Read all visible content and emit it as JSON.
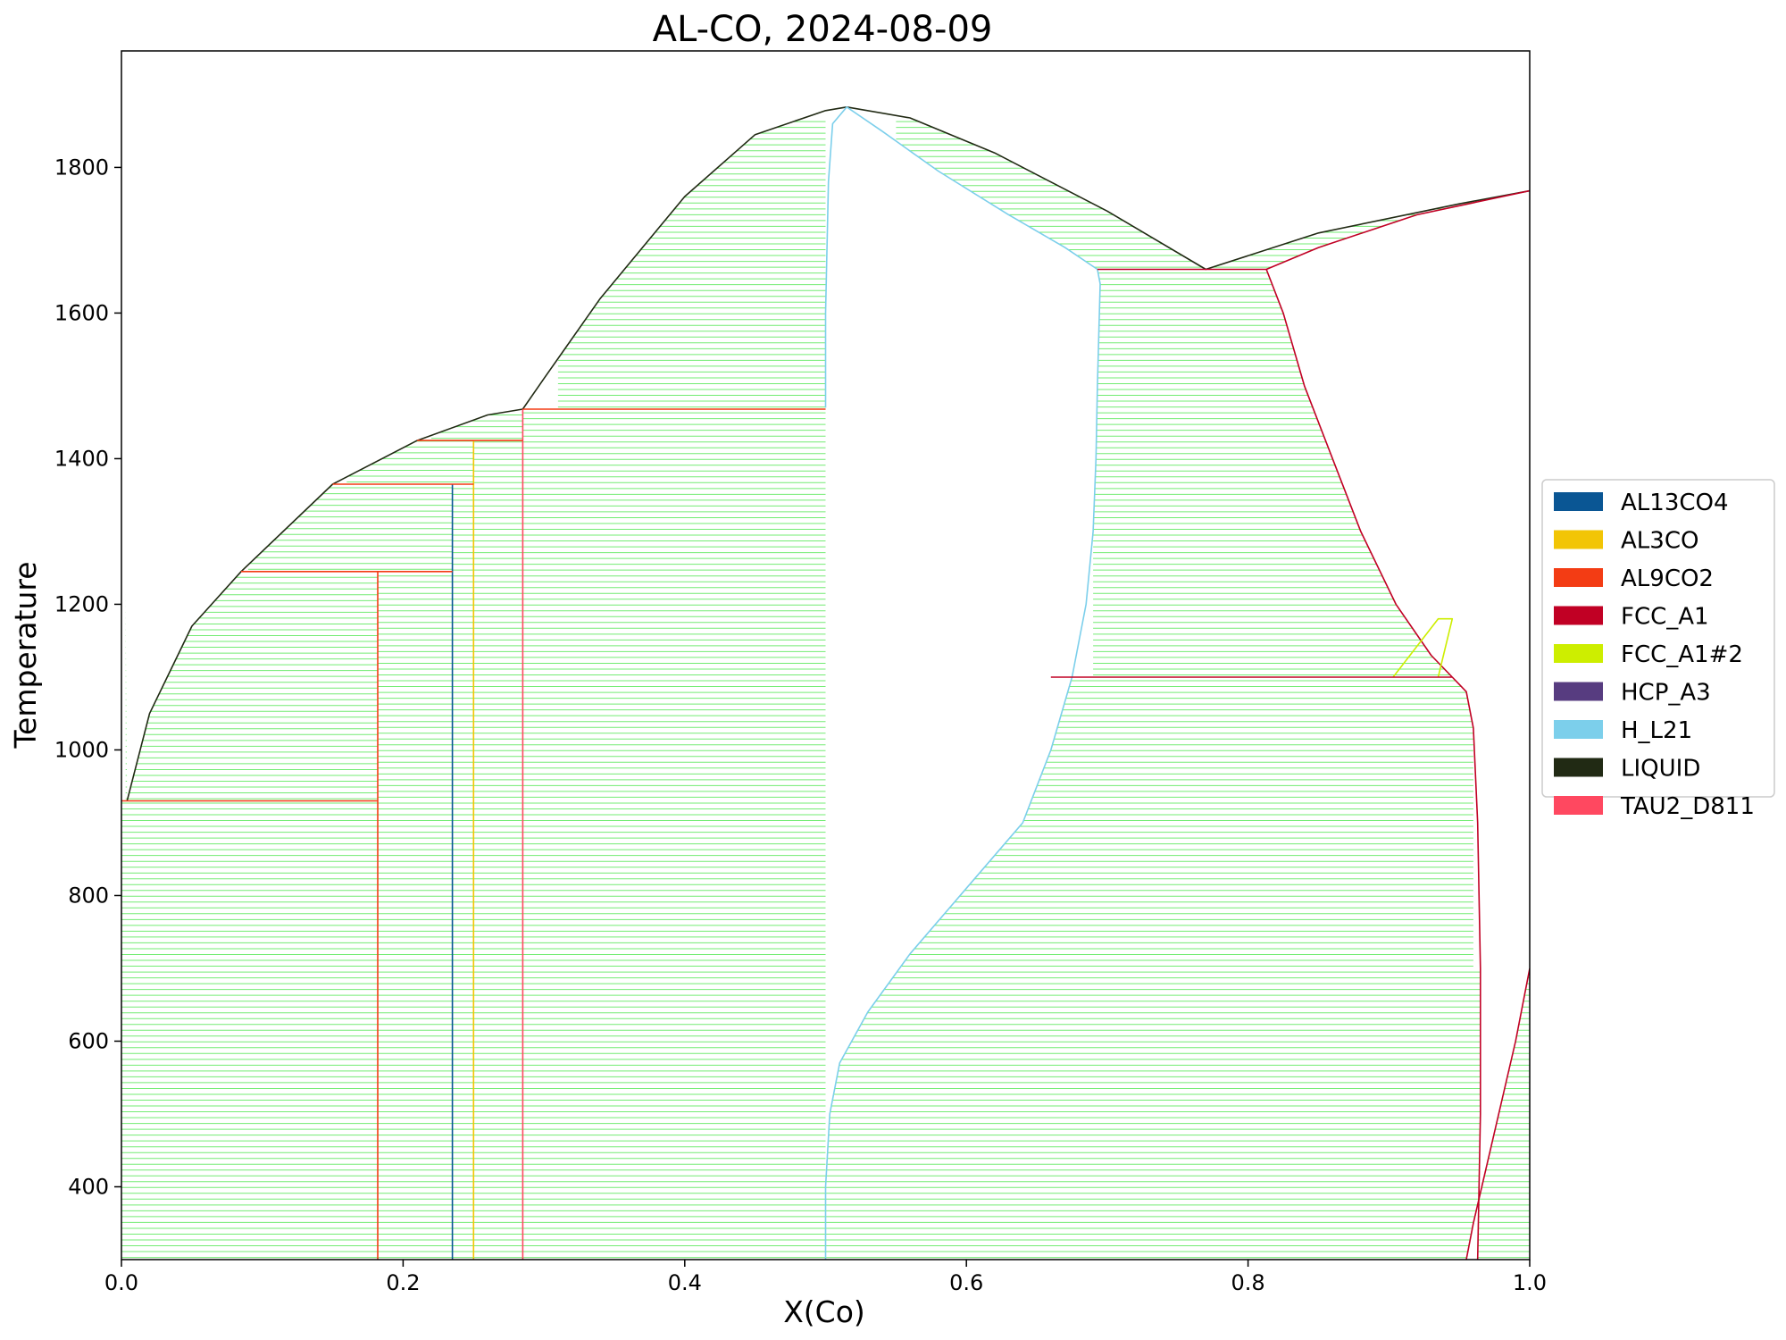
{
  "chart_data": {
    "type": "line",
    "title": "AL-CO, 2024-08-09",
    "xlabel": "X(Co)",
    "ylabel": "Temperature",
    "xlim": [
      0,
      1
    ],
    "ylim": [
      300,
      1960
    ],
    "xticks": [
      "0.0",
      "0.2",
      "0.4",
      "0.6",
      "0.8",
      "1.0"
    ],
    "yticks": [
      "400",
      "600",
      "800",
      "1000",
      "1200",
      "1400",
      "1600",
      "1800"
    ],
    "grid": false,
    "legend_position": "right",
    "tieline_color": "#00dd00",
    "legend": [
      {
        "name": "AL13CO4",
        "color": "#0a5694"
      },
      {
        "name": "AL3CO",
        "color": "#f2c505"
      },
      {
        "name": "AL9CO2",
        "color": "#f33c14"
      },
      {
        "name": "FCC_A1",
        "color": "#c10024"
      },
      {
        "name": "FCC_A1#2",
        "color": "#cdee00"
      },
      {
        "name": "HCP_A3",
        "color": "#573c80"
      },
      {
        "name": "H_L21",
        "color": "#7ccfeb"
      },
      {
        "name": "LIQUID",
        "color": "#212a14"
      },
      {
        "name": "TAU2_D811",
        "color": "#ff4860"
      }
    ],
    "boundaries": [
      {
        "phase": "LIQUID",
        "color": "#212a14",
        "points": [
          [
            0.004,
            930
          ],
          [
            0.02,
            1050
          ],
          [
            0.05,
            1170
          ],
          [
            0.085,
            1245
          ],
          [
            0.15,
            1365
          ],
          [
            0.21,
            1425
          ],
          [
            0.26,
            1460
          ],
          [
            0.285,
            1468
          ],
          [
            0.3,
            1510
          ],
          [
            0.34,
            1620
          ],
          [
            0.4,
            1760
          ],
          [
            0.45,
            1845
          ],
          [
            0.5,
            1878
          ],
          [
            0.515,
            1883
          ],
          [
            0.56,
            1868
          ],
          [
            0.62,
            1820
          ],
          [
            0.7,
            1740
          ],
          [
            0.77,
            1660
          ],
          [
            0.85,
            1710
          ],
          [
            0.95,
            1750
          ],
          [
            1.0,
            1768
          ]
        ]
      },
      {
        "phase": "H_L21",
        "color": "#7ccfeb",
        "points": [
          [
            0.5,
            300
          ],
          [
            0.5,
            400
          ],
          [
            0.503,
            500
          ],
          [
            0.51,
            570
          ],
          [
            0.53,
            640
          ],
          [
            0.56,
            720
          ],
          [
            0.6,
            810
          ],
          [
            0.64,
            900
          ],
          [
            0.66,
            1000
          ],
          [
            0.675,
            1100
          ],
          [
            0.685,
            1200
          ],
          [
            0.69,
            1300
          ],
          [
            0.692,
            1400
          ],
          [
            0.693,
            1500
          ],
          [
            0.695,
            1640
          ],
          [
            0.693,
            1660
          ]
        ]
      },
      {
        "phase": "H_L21",
        "color": "#7ccfeb",
        "points": [
          [
            0.693,
            1660
          ],
          [
            0.67,
            1690
          ],
          [
            0.63,
            1735
          ],
          [
            0.58,
            1795
          ],
          [
            0.54,
            1850
          ],
          [
            0.515,
            1883
          ],
          [
            0.505,
            1860
          ],
          [
            0.502,
            1780
          ],
          [
            0.5,
            1600
          ],
          [
            0.5,
            1470
          ]
        ]
      },
      {
        "phase": "FCC_A1",
        "color": "#c10024",
        "points": [
          [
            0.813,
            1660
          ],
          [
            0.825,
            1600
          ],
          [
            0.84,
            1500
          ],
          [
            0.86,
            1400
          ],
          [
            0.88,
            1300
          ],
          [
            0.905,
            1200
          ],
          [
            0.93,
            1130
          ],
          [
            0.945,
            1100
          ]
        ]
      },
      {
        "phase": "FCC_A1",
        "color": "#c10024",
        "points": [
          [
            0.945,
            1100
          ],
          [
            0.955,
            1080
          ],
          [
            0.96,
            1030
          ],
          [
            0.963,
            900
          ],
          [
            0.965,
            700
          ],
          [
            0.965,
            500
          ],
          [
            0.963,
            300
          ]
        ]
      },
      {
        "phase": "FCC_A1",
        "color": "#c10024",
        "points": [
          [
            0.813,
            1660
          ],
          [
            0.85,
            1690
          ],
          [
            0.92,
            1735
          ],
          [
            1.0,
            1768
          ]
        ]
      },
      {
        "phase": "FCC_A1",
        "color": "#c10024",
        "points": [
          [
            0.955,
            300
          ],
          [
            0.96,
            350
          ],
          [
            0.99,
            600
          ],
          [
            1.0,
            700
          ]
        ]
      },
      {
        "phase": "FCC_A1#2",
        "color": "#cdee00",
        "points": [
          [
            0.903,
            1100
          ],
          [
            0.935,
            1180
          ],
          [
            0.945,
            1180
          ],
          [
            0.935,
            1100
          ]
        ]
      },
      {
        "phase": "AL9CO2",
        "color": "#f33c14",
        "points": [
          [
            0.182,
            300
          ],
          [
            0.182,
            1245
          ]
        ]
      },
      {
        "phase": "AL13CO4",
        "color": "#0a5694",
        "points": [
          [
            0.235,
            300
          ],
          [
            0.235,
            1365
          ]
        ]
      },
      {
        "phase": "AL3CO",
        "color": "#f2c505",
        "points": [
          [
            0.25,
            300
          ],
          [
            0.25,
            1425
          ]
        ]
      },
      {
        "phase": "TAU2_D811",
        "color": "#ff4860",
        "points": [
          [
            0.285,
            300
          ],
          [
            0.285,
            1468
          ]
        ]
      },
      {
        "phase": "AL9CO2",
        "color": "#f33c14",
        "points": [
          [
            0.0,
            930
          ],
          [
            0.182,
            930
          ]
        ]
      },
      {
        "phase": "AL9CO2",
        "color": "#f33c14",
        "points": [
          [
            0.085,
            1245
          ],
          [
            0.235,
            1245
          ]
        ]
      },
      {
        "phase": "AL9CO2",
        "color": "#f33c14",
        "points": [
          [
            0.15,
            1365
          ],
          [
            0.25,
            1365
          ]
        ]
      },
      {
        "phase": "AL9CO2",
        "color": "#f33c14",
        "points": [
          [
            0.21,
            1425
          ],
          [
            0.285,
            1425
          ]
        ]
      },
      {
        "phase": "AL9CO2",
        "color": "#f33c14",
        "points": [
          [
            0.285,
            1468
          ],
          [
            0.5,
            1468
          ]
        ]
      },
      {
        "phase": "FCC_A1",
        "color": "#c10024",
        "points": [
          [
            0.693,
            1660
          ],
          [
            0.813,
            1660
          ]
        ]
      },
      {
        "phase": "FCC_A1",
        "color": "#c10024",
        "points": [
          [
            0.66,
            1100
          ],
          [
            0.945,
            1100
          ]
        ]
      }
    ]
  }
}
